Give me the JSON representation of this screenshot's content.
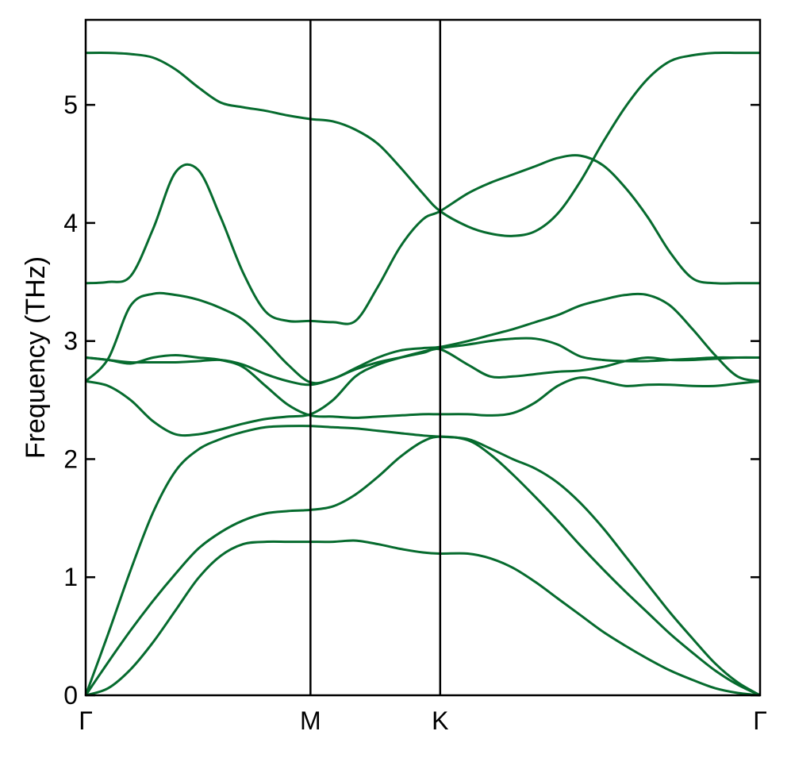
{
  "chart_data": {
    "type": "line",
    "title": "",
    "xlabel": "",
    "ylabel": "Frequency (THz)",
    "ylim": [
      0,
      5.72
    ],
    "xlim": [
      0,
      3
    ],
    "yticks": [
      "0",
      "1",
      "2",
      "3",
      "4",
      "5"
    ],
    "x_ticks": [
      {
        "label": "Γ",
        "x": 0
      },
      {
        "label": "M",
        "x": 1
      },
      {
        "label": "K",
        "x": 1.577
      },
      {
        "label": "Γ",
        "x": 3
      }
    ],
    "vlines": [
      1,
      1.577
    ],
    "line_color": "#066b2e",
    "grid": false,
    "legend": "none",
    "x": [
      0,
      0.1,
      0.2,
      0.3,
      0.4,
      0.5,
      0.6,
      0.7,
      0.8,
      0.9,
      1.0,
      1.1,
      1.2,
      1.3,
      1.4,
      1.5,
      1.577,
      1.7,
      1.8,
      1.9,
      2.0,
      2.1,
      2.2,
      2.3,
      2.4,
      2.5,
      2.6,
      2.7,
      2.8,
      2.9,
      3.0
    ],
    "series": [
      {
        "values": [
          0,
          0.06,
          0.22,
          0.45,
          0.72,
          0.99,
          1.18,
          1.28,
          1.3,
          1.3,
          1.3,
          1.3,
          1.31,
          1.28,
          1.24,
          1.21,
          1.2,
          1.2,
          1.16,
          1.08,
          0.96,
          0.82,
          0.68,
          0.54,
          0.42,
          0.31,
          0.21,
          0.13,
          0.06,
          0.02,
          0
        ]
      },
      {
        "values": [
          0,
          0.28,
          0.55,
          0.8,
          1.03,
          1.24,
          1.38,
          1.48,
          1.54,
          1.56,
          1.57,
          1.6,
          1.7,
          1.85,
          2.02,
          2.15,
          2.19,
          2.16,
          2.04,
          1.87,
          1.68,
          1.48,
          1.27,
          1.07,
          0.88,
          0.7,
          0.52,
          0.36,
          0.21,
          0.09,
          0
        ]
      },
      {
        "values": [
          0,
          0.52,
          1.06,
          1.55,
          1.9,
          2.08,
          2.17,
          2.23,
          2.27,
          2.28,
          2.28,
          2.27,
          2.26,
          2.24,
          2.22,
          2.2,
          2.19,
          2.17,
          2.09,
          2.0,
          1.92,
          1.8,
          1.63,
          1.42,
          1.18,
          0.94,
          0.7,
          0.48,
          0.27,
          0.11,
          0
        ]
      },
      {
        "values": [
          2.66,
          2.62,
          2.5,
          2.32,
          2.21,
          2.21,
          2.25,
          2.3,
          2.34,
          2.36,
          2.38,
          2.5,
          2.7,
          2.8,
          2.86,
          2.91,
          2.94,
          2.97,
          3.0,
          3.02,
          3.02,
          2.97,
          2.87,
          2.84,
          2.83,
          2.83,
          2.84,
          2.85,
          2.86,
          2.86,
          2.86
        ]
      },
      {
        "values": [
          2.86,
          2.84,
          2.82,
          2.82,
          2.82,
          2.83,
          2.84,
          2.8,
          2.72,
          2.66,
          2.63,
          2.68,
          2.76,
          2.82,
          2.86,
          2.9,
          2.93,
          2.8,
          2.7,
          2.7,
          2.72,
          2.74,
          2.75,
          2.78,
          2.83,
          2.86,
          2.84,
          2.84,
          2.85,
          2.86,
          2.86
        ]
      },
      {
        "values": [
          2.86,
          2.84,
          2.81,
          2.86,
          2.88,
          2.86,
          2.84,
          2.78,
          2.62,
          2.46,
          2.37,
          2.36,
          2.35,
          2.36,
          2.37,
          2.38,
          2.38,
          2.38,
          2.37,
          2.39,
          2.48,
          2.62,
          2.69,
          2.66,
          2.62,
          2.63,
          2.63,
          2.62,
          2.62,
          2.64,
          2.66
        ]
      },
      {
        "values": [
          2.66,
          2.85,
          3.3,
          3.4,
          3.39,
          3.35,
          3.28,
          3.18,
          3.0,
          2.8,
          2.65,
          2.68,
          2.77,
          2.86,
          2.92,
          2.94,
          2.95,
          3.0,
          3.05,
          3.1,
          3.16,
          3.22,
          3.3,
          3.35,
          3.39,
          3.39,
          3.3,
          3.1,
          2.88,
          2.7,
          2.66
        ]
      },
      {
        "values": [
          3.49,
          3.5,
          3.55,
          3.95,
          4.43,
          4.45,
          4.05,
          3.58,
          3.25,
          3.17,
          3.17,
          3.16,
          3.17,
          3.46,
          3.8,
          4.03,
          4.1,
          4.25,
          4.34,
          4.41,
          4.48,
          4.55,
          4.57,
          4.49,
          4.3,
          4.05,
          3.75,
          3.53,
          3.49,
          3.49,
          3.49
        ]
      },
      {
        "values": [
          5.44,
          5.44,
          5.43,
          5.4,
          5.3,
          5.15,
          5.02,
          4.98,
          4.95,
          4.91,
          4.88,
          4.86,
          4.79,
          4.67,
          4.47,
          4.25,
          4.1,
          3.97,
          3.91,
          3.89,
          3.93,
          4.08,
          4.35,
          4.68,
          4.98,
          5.22,
          5.37,
          5.42,
          5.44,
          5.44,
          5.44
        ]
      }
    ]
  }
}
